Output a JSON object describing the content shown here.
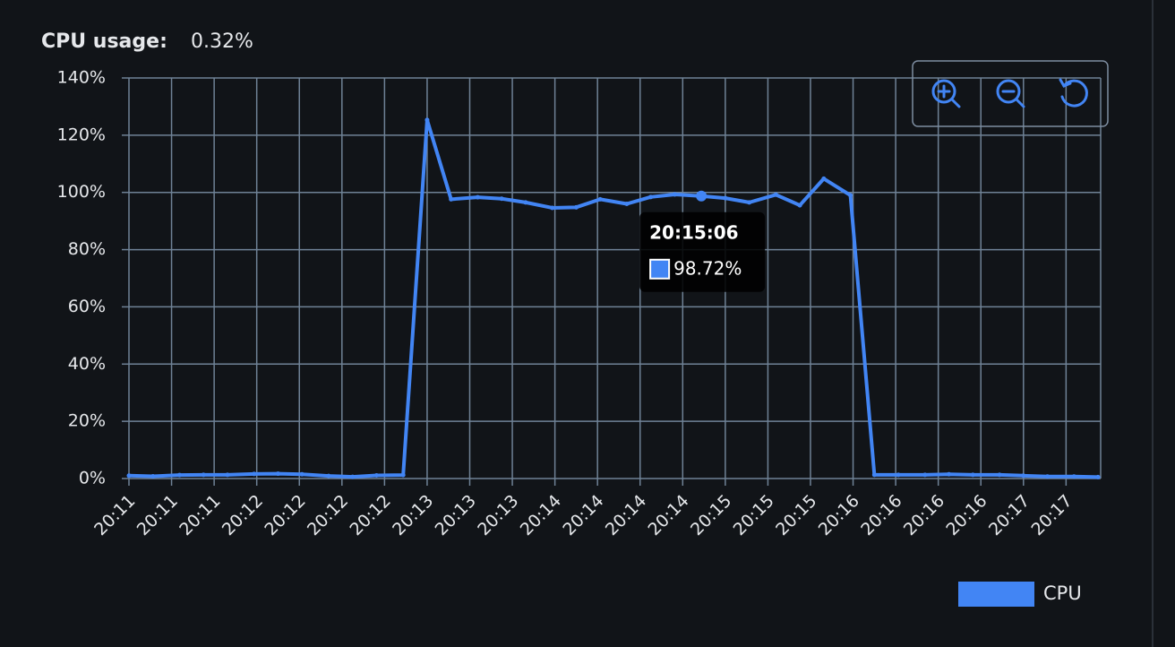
{
  "chart_data": {
    "type": "line",
    "title": "CPU usage:",
    "current_value": "0.32%",
    "tooltip_title": "20:15:06",
    "ylim": [
      0,
      140
    ],
    "yticks": [
      {
        "value": 0,
        "label": "0%"
      },
      {
        "value": 20,
        "label": "20%"
      },
      {
        "value": 40,
        "label": "40%"
      },
      {
        "value": 60,
        "label": "60%"
      },
      {
        "value": 80,
        "label": "80%"
      },
      {
        "value": 100,
        "label": "100%"
      },
      {
        "value": 120,
        "label": "120%"
      },
      {
        "value": 140,
        "label": "140%"
      }
    ],
    "xlim": [
      72691,
      73056
    ],
    "xticks": [
      {
        "value": 72691,
        "label": "20:11"
      },
      {
        "value": 72707,
        "label": "20:11"
      },
      {
        "value": 72723,
        "label": "20:11"
      },
      {
        "value": 72739,
        "label": "20:12"
      },
      {
        "value": 72755,
        "label": "20:12"
      },
      {
        "value": 72771,
        "label": "20:12"
      },
      {
        "value": 72787,
        "label": "20:12"
      },
      {
        "value": 72803,
        "label": "20:13"
      },
      {
        "value": 72819,
        "label": "20:13"
      },
      {
        "value": 72835,
        "label": "20:13"
      },
      {
        "value": 72851,
        "label": "20:14"
      },
      {
        "value": 72867,
        "label": "20:14"
      },
      {
        "value": 72883,
        "label": "20:14"
      },
      {
        "value": 72899,
        "label": "20:14"
      },
      {
        "value": 72915,
        "label": "20:15"
      },
      {
        "value": 72931,
        "label": "20:15"
      },
      {
        "value": 72947,
        "label": "20:15"
      },
      {
        "value": 72963,
        "label": "20:16"
      },
      {
        "value": 72979,
        "label": "20:16"
      },
      {
        "value": 72995,
        "label": "20:16"
      },
      {
        "value": 73011,
        "label": "20:16"
      },
      {
        "value": 73027,
        "label": "20:17"
      },
      {
        "value": 73043,
        "label": "20:17"
      }
    ],
    "x": [
      72691,
      72700,
      72710,
      72719,
      72728,
      72738,
      72747,
      72756,
      72766,
      72775,
      72784,
      72794,
      72803,
      72812,
      72822,
      72831,
      72840,
      72850,
      72859,
      72868,
      72878,
      72887,
      72896,
      72906,
      72915,
      72924,
      72934,
      72943,
      72952,
      72962,
      72971,
      72980,
      72990,
      72999,
      73008,
      73018,
      73027,
      73036,
      73046,
      73055
    ],
    "series": [
      {
        "name": "CPU",
        "color": "#4285f4",
        "values": [
          1.0,
          0.8,
          1.2,
          1.3,
          1.3,
          1.6,
          1.7,
          1.5,
          0.9,
          0.6,
          1.1,
          1.2,
          125.3,
          97.6,
          98.3,
          97.8,
          96.5,
          94.6,
          94.8,
          97.6,
          96.0,
          98.4,
          99.3,
          98.72,
          98.0,
          96.5,
          99.2,
          95.5,
          104.8,
          99.0,
          1.3,
          1.3,
          1.3,
          1.5,
          1.3,
          1.3,
          1.0,
          0.7,
          0.7,
          0.5
        ],
        "value_labels": [
          null,
          null,
          null,
          null,
          null,
          null,
          null,
          null,
          null,
          null,
          null,
          null,
          null,
          null,
          null,
          null,
          null,
          null,
          null,
          null,
          null,
          null,
          null,
          "98.72%",
          null,
          null,
          null,
          null,
          null,
          null,
          null,
          null,
          null,
          null,
          null,
          null,
          null,
          null,
          null,
          null
        ]
      }
    ],
    "grid": true,
    "legend": "bottom-right"
  }
}
